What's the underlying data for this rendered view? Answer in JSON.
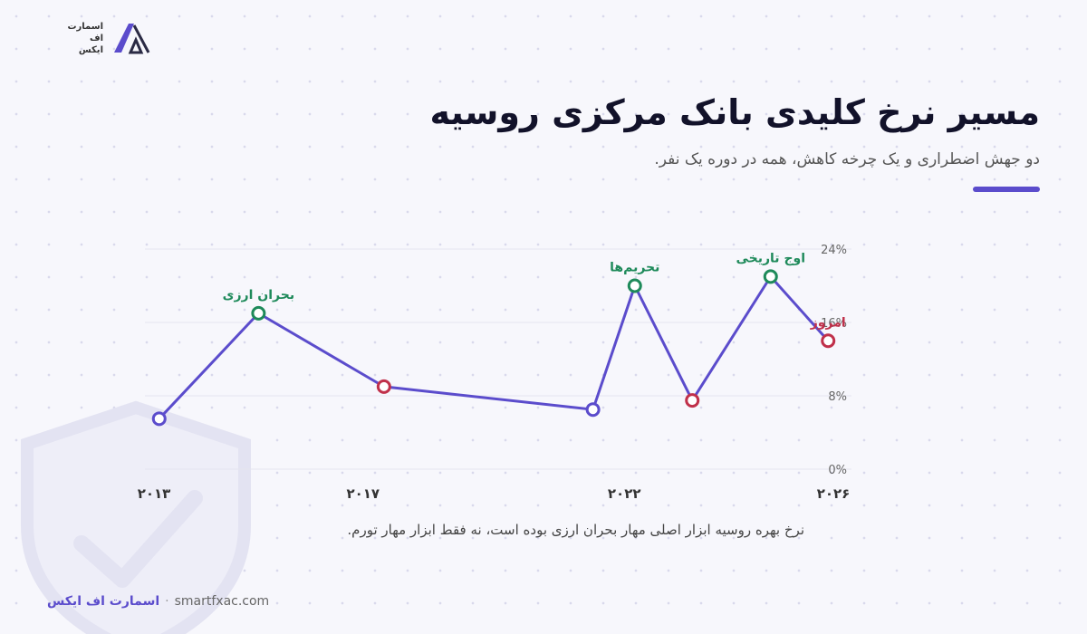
{
  "brand": {
    "logo_lines": [
      "اسمارت",
      "اف",
      "ایکس"
    ],
    "footer_name": "اسمارت اف ایکس",
    "footer_separator": "·",
    "footer_url": "smartfxac.com"
  },
  "header": {
    "title": "مسیر نرخ کلیدی بانک مرکزی روسیه",
    "subtitle": "دو جهش اضطراری و یک چرخه کاهش، همه در دوره یک نفر."
  },
  "note": "نرخ بهره روسیه ابزار اصلی مهار بحران ارزی بوده است، نه فقط ابزار مهار تورم.",
  "colors": {
    "line": "#5b4ccc",
    "peak": "#1e8a5a",
    "trough": "#c0304a",
    "neutral": "#5b4ccc",
    "accent": "#5b4ccc"
  },
  "chart_data": {
    "type": "line",
    "title": "مسیر نرخ کلیدی بانک مرکزی روسیه",
    "y_tick_labels": [
      "24%",
      "16%",
      "8%",
      "0%"
    ],
    "x_tick_labels": [
      "۲۰۱۳",
      "۲۰۱۷",
      "۲۰۲۲",
      "۲۰۲۶"
    ],
    "ylim": [
      0,
      24
    ],
    "xlim": [
      2013,
      2026
    ],
    "grid": true,
    "points": [
      {
        "x": 2013.1,
        "y": 5.5,
        "kind": "neutral",
        "label": ""
      },
      {
        "x": 2015.0,
        "y": 17.0,
        "kind": "peak",
        "label": "بحران ارزی"
      },
      {
        "x": 2017.4,
        "y": 9.0,
        "kind": "trough",
        "label": ""
      },
      {
        "x": 2021.4,
        "y": 6.5,
        "kind": "neutral",
        "label": ""
      },
      {
        "x": 2022.2,
        "y": 20.0,
        "kind": "peak",
        "label": "تحریم‌ها"
      },
      {
        "x": 2023.3,
        "y": 7.5,
        "kind": "trough",
        "label": ""
      },
      {
        "x": 2024.8,
        "y": 21.0,
        "kind": "peak",
        "label": "اوج تاریخی"
      },
      {
        "x": 2025.9,
        "y": 14.0,
        "kind": "trough",
        "label": "امروز"
      }
    ]
  }
}
